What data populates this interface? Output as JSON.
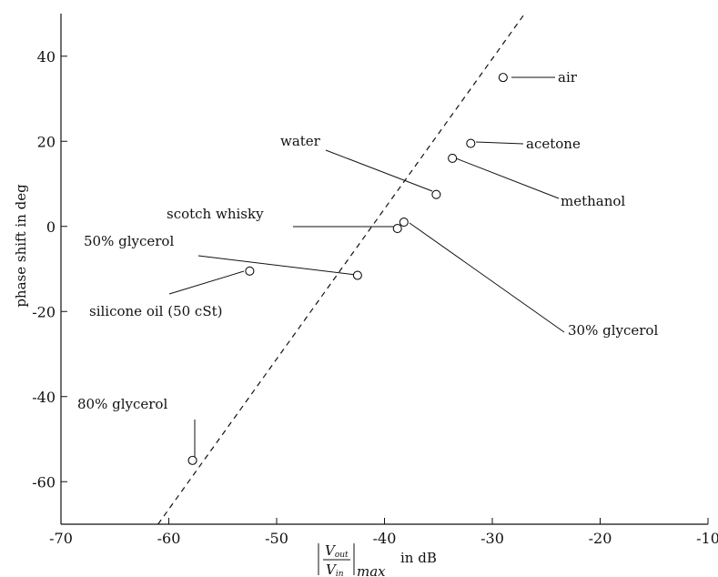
{
  "chart_data": {
    "type": "scatter",
    "title": "",
    "xlabel_prefix": "|",
    "xlabel_fraction_num": "V",
    "xlabel_fraction_num_sub": "out",
    "xlabel_fraction_den": "V",
    "xlabel_fraction_den_sub": "in",
    "xlabel_sub": "max",
    "xlabel_suffix": "in dB",
    "ylabel": "phase shift in deg",
    "xlim": [
      -70,
      -10
    ],
    "ylim": [
      -70,
      50
    ],
    "x_ticks": [
      -70,
      -60,
      -50,
      -40,
      -30,
      -20,
      -10
    ],
    "y_ticks": [
      -60,
      -40,
      -20,
      0,
      20,
      40
    ],
    "grid": false,
    "points": [
      {
        "label": "air",
        "x": -29.0,
        "y": 35.0
      },
      {
        "label": "acetone",
        "x": -32.0,
        "y": 19.5
      },
      {
        "label": "methanol",
        "x": -33.7,
        "y": 16.0
      },
      {
        "label": "water",
        "x": -35.2,
        "y": 7.5
      },
      {
        "label": "scotch whisky",
        "x": -38.8,
        "y": -0.5
      },
      {
        "label": "30% glycerol",
        "x": -38.2,
        "y": 1.0
      },
      {
        "label": "50% glycerol",
        "x": -42.5,
        "y": -11.5
      },
      {
        "label": "silicone oil (50 cSt)",
        "x": -52.5,
        "y": -10.5
      },
      {
        "label": "80% glycerol",
        "x": -57.8,
        "y": -55.0
      }
    ],
    "trend_line": {
      "style": "dashed",
      "from": {
        "x": -61.0,
        "y": -70
      },
      "to": {
        "x": -27.0,
        "y": 50
      }
    }
  }
}
